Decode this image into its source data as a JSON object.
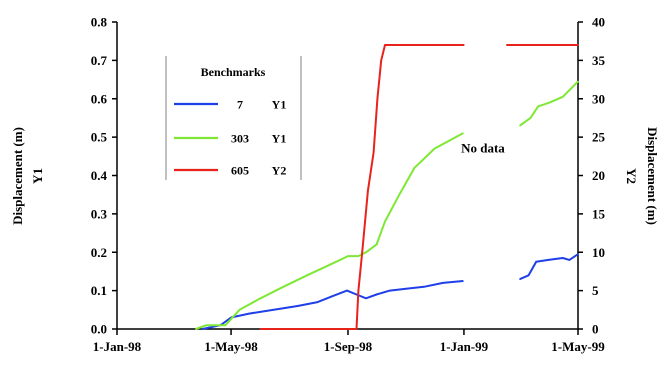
{
  "chart_data": {
    "type": "line",
    "x_axis": {
      "type": "date",
      "range": [
        "1998-01-01",
        "1999-05-01"
      ],
      "tick_labels": [
        "1-Jan-98",
        "1-May-98",
        "1-Sep-98",
        "1-Jan-99",
        "1-May-99"
      ]
    },
    "y_left": {
      "label": [
        "Displacement (m)",
        "Y1"
      ],
      "ylim": [
        0,
        0.8
      ],
      "tick_labels": [
        "0.0",
        "0.1",
        "0.2",
        "0.3",
        "0.4",
        "0.5",
        "0.6",
        "0.7",
        "0.8"
      ]
    },
    "y_right": {
      "label": [
        "Displacement (m)",
        "Y2"
      ],
      "ylim": [
        0,
        40
      ],
      "tick_labels": [
        "0",
        "5",
        "10",
        "15",
        "20",
        "25",
        "30",
        "35",
        "40"
      ]
    },
    "grid": false,
    "legend": {
      "title": "Benchmarks",
      "placement": "top-left",
      "entries": [
        {
          "id": "7",
          "axis": "Y1"
        },
        {
          "id": "303",
          "axis": "Y1"
        },
        {
          "id": "605",
          "axis": "Y2"
        }
      ]
    },
    "annotations": [
      {
        "text": "No data",
        "x": "1999-01-15",
        "y_left": 0.47
      }
    ],
    "series": [
      {
        "name": "7",
        "axis": "Y1",
        "color": "#1f3fe8",
        "segments": [
          [
            [
              "1998-04-01",
              0.0
            ],
            [
              "1998-04-20",
              0.01
            ],
            [
              "1998-05-01",
              0.03
            ],
            [
              "1998-05-20",
              0.04
            ],
            [
              "1998-06-15",
              0.05
            ],
            [
              "1998-07-10",
              0.06
            ],
            [
              "1998-07-31",
              0.07
            ],
            [
              "1998-08-15",
              0.085
            ],
            [
              "1998-08-31",
              0.1
            ],
            [
              "1998-09-10",
              0.09
            ],
            [
              "1998-09-20",
              0.08
            ],
            [
              "1998-10-01",
              0.09
            ],
            [
              "1998-10-15",
              0.1
            ],
            [
              "1998-11-01",
              0.105
            ],
            [
              "1998-11-20",
              0.11
            ],
            [
              "1998-12-10",
              0.12
            ],
            [
              "1998-12-31",
              0.125
            ]
          ],
          [
            [
              "1999-03-01",
              0.13
            ],
            [
              "1999-03-10",
              0.14
            ],
            [
              "1999-03-18",
              0.175
            ],
            [
              "1999-03-31",
              0.18
            ],
            [
              "1999-04-15",
              0.185
            ],
            [
              "1999-04-22",
              0.18
            ],
            [
              "1999-05-01",
              0.195
            ]
          ]
        ]
      },
      {
        "name": "303",
        "axis": "Y1",
        "color": "#7ee835",
        "segments": [
          [
            [
              "1998-03-25",
              0.0
            ],
            [
              "1998-04-05",
              0.01
            ],
            [
              "1998-04-25",
              0.01
            ],
            [
              "1998-05-10",
              0.05
            ],
            [
              "1998-06-01",
              0.08
            ],
            [
              "1998-06-25",
              0.11
            ],
            [
              "1998-07-20",
              0.14
            ],
            [
              "1998-08-15",
              0.17
            ],
            [
              "1998-09-01",
              0.19
            ],
            [
              "1998-09-12",
              0.19
            ],
            [
              "1998-09-20",
              0.2
            ],
            [
              "1998-10-01",
              0.22
            ],
            [
              "1998-10-10",
              0.28
            ],
            [
              "1998-10-25",
              0.35
            ],
            [
              "1998-11-10",
              0.42
            ],
            [
              "1998-12-01",
              0.47
            ],
            [
              "1998-12-31",
              0.51
            ]
          ],
          [
            [
              "1999-03-01",
              0.53
            ],
            [
              "1999-03-12",
              0.55
            ],
            [
              "1999-03-20",
              0.58
            ],
            [
              "1999-04-01",
              0.59
            ],
            [
              "1999-04-15",
              0.605
            ],
            [
              "1999-05-01",
              0.645
            ]
          ]
        ]
      },
      {
        "name": "605",
        "axis": "Y2",
        "color": "#e8231b",
        "segments": [
          [
            [
              "1998-06-01",
              0.0
            ],
            [
              "1998-09-10",
              0.0
            ],
            [
              "1998-09-12",
              5
            ],
            [
              "1998-09-16",
              10
            ],
            [
              "1998-09-22",
              18
            ],
            [
              "1998-09-28",
              23
            ],
            [
              "1998-10-02",
              30
            ],
            [
              "1998-10-06",
              35
            ],
            [
              "1998-10-10",
              37
            ],
            [
              "1999-01-01",
              37
            ]
          ],
          [
            [
              "1999-02-15",
              37
            ],
            [
              "1999-05-01",
              37
            ]
          ]
        ]
      }
    ]
  }
}
